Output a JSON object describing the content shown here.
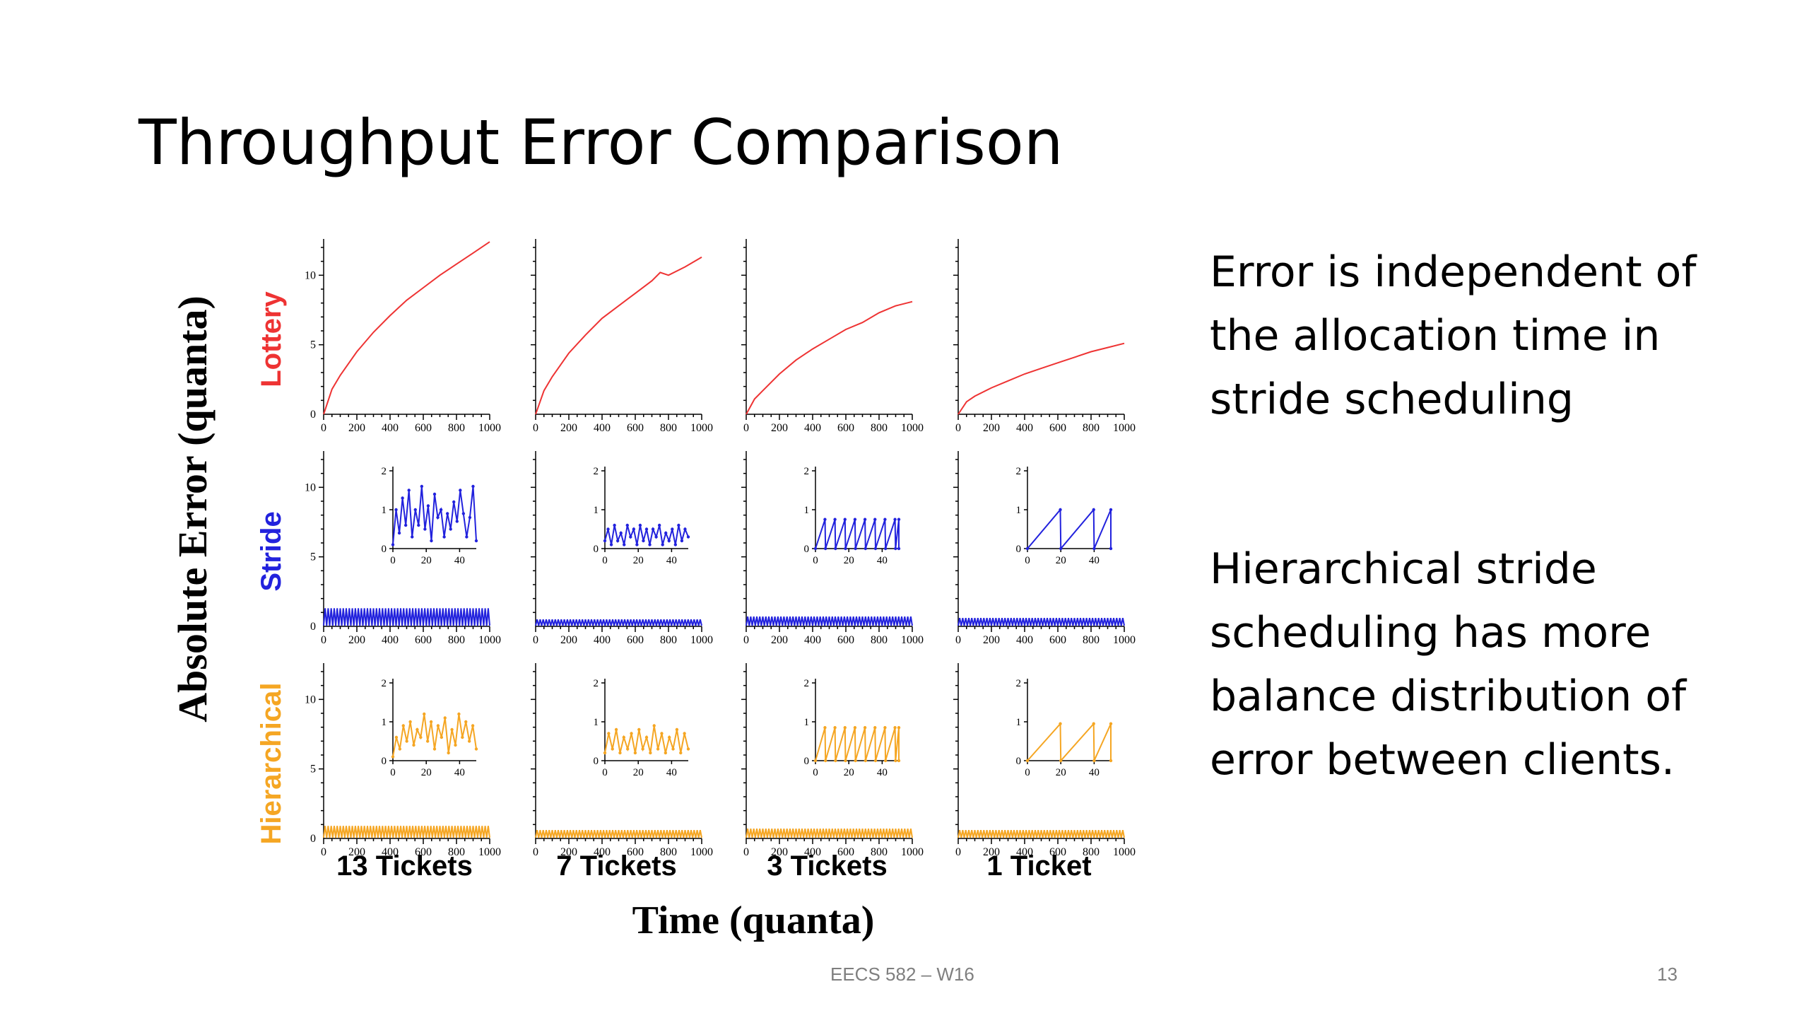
{
  "slide": {
    "title": "Throughput Error Comparison",
    "bullets": [
      "Error is independent of the allocation time in stride scheduling",
      "Hierarchical stride scheduling has more balance distribution of error between clients."
    ],
    "footer": "EECS 582 – W16",
    "page_number": "13"
  },
  "chart_data": {
    "type": "line",
    "ylabel": "Absolute Error (quanta)",
    "xlabel": "Time (quanta)",
    "columns": [
      "13 Tickets",
      "7 Tickets",
      "3 Tickets",
      "1 Ticket"
    ],
    "x_ticks": [
      "0",
      "200",
      "400",
      "600",
      "800",
      "1000"
    ],
    "y_ticks": [
      "0",
      "5",
      "10"
    ],
    "inset_x_ticks": [
      "0",
      "20",
      "40"
    ],
    "inset_y_ticks": [
      "0",
      "1",
      "2"
    ],
    "xlim": [
      0,
      1000
    ],
    "ylim": [
      0,
      12
    ],
    "inset_xlim": [
      0,
      50
    ],
    "inset_ylim": [
      0,
      2
    ],
    "colors": {
      "Lottery": "#ee3333",
      "Stride": "#2222dd",
      "Hierarchical": "#f5a623"
    },
    "rows": [
      {
        "name": "Lottery",
        "panels": [
          {
            "x": [
              0,
              50,
              100,
              200,
              300,
              400,
              500,
              600,
              700,
              800,
              900,
              1000
            ],
            "y": [
              0,
              1.8,
              2.8,
              4.5,
              5.9,
              7.1,
              8.2,
              9.1,
              10.0,
              10.8,
              11.6,
              12.4
            ]
          },
          {
            "x": [
              0,
              50,
              100,
              200,
              300,
              400,
              500,
              600,
              700,
              750,
              800,
              900,
              1000
            ],
            "y": [
              0,
              1.7,
              2.7,
              4.4,
              5.7,
              6.9,
              7.8,
              8.7,
              9.6,
              10.2,
              10.0,
              10.6,
              11.3
            ]
          },
          {
            "x": [
              0,
              50,
              100,
              200,
              300,
              400,
              500,
              600,
              700,
              800,
              900,
              1000
            ],
            "y": [
              0,
              1.1,
              1.7,
              2.9,
              3.9,
              4.7,
              5.4,
              6.1,
              6.6,
              7.3,
              7.8,
              8.1
            ]
          },
          {
            "x": [
              0,
              50,
              100,
              200,
              300,
              400,
              500,
              600,
              700,
              800,
              900,
              1000
            ],
            "y": [
              0,
              0.9,
              1.3,
              1.9,
              2.4,
              2.9,
              3.3,
              3.7,
              4.1,
              4.5,
              4.8,
              5.1
            ]
          }
        ]
      },
      {
        "name": "Stride",
        "panels": [
          {
            "band_max": 1.3,
            "inset_y": [
              0.1,
              1.0,
              0.4,
              1.3,
              0.6,
              1.5,
              0.3,
              1.0,
              0.6,
              1.6,
              0.5,
              1.1,
              0.2,
              1.4,
              0.8,
              1.0,
              0.3,
              0.9,
              0.5,
              1.2,
              0.7,
              1.5,
              0.9,
              0.3,
              0.8,
              1.6,
              0.2
            ]
          },
          {
            "band_max": 0.5,
            "inset_y": [
              0.2,
              0.5,
              0.1,
              0.6,
              0.2,
              0.4,
              0.1,
              0.6,
              0.3,
              0.5,
              0.1,
              0.6,
              0.2,
              0.5,
              0.1,
              0.5,
              0.3,
              0.6,
              0.1,
              0.4,
              0.2,
              0.5,
              0.1,
              0.6,
              0.2,
              0.5,
              0.3
            ]
          },
          {
            "band_max": 0.7,
            "sawtooth": {
              "period": 6,
              "max": 0.75
            }
          },
          {
            "band_max": 0.6,
            "sawtooth": {
              "period": 20,
              "max": 1.0
            }
          }
        ]
      },
      {
        "name": "Hierarchical",
        "panels": [
          {
            "band_max": 0.9,
            "inset_y": [
              0.1,
              0.6,
              0.3,
              0.9,
              0.5,
              1.0,
              0.4,
              0.8,
              0.6,
              1.2,
              0.5,
              1.0,
              0.3,
              0.9,
              0.6,
              1.1,
              0.2,
              0.8,
              0.4,
              1.2,
              0.6,
              1.0,
              0.5,
              0.9,
              0.3
            ]
          },
          {
            "band_max": 0.6,
            "inset_y": [
              0.2,
              0.7,
              0.3,
              0.8,
              0.2,
              0.6,
              0.3,
              0.7,
              0.2,
              0.8,
              0.3,
              0.6,
              0.2,
              0.9,
              0.3,
              0.7,
              0.2,
              0.6,
              0.3,
              0.8,
              0.2,
              0.7,
              0.3
            ]
          },
          {
            "band_max": 0.7,
            "sawtooth": {
              "period": 6,
              "max": 0.85
            }
          },
          {
            "band_max": 0.6,
            "sawtooth": {
              "period": 20,
              "max": 0.95
            }
          }
        ]
      }
    ]
  }
}
